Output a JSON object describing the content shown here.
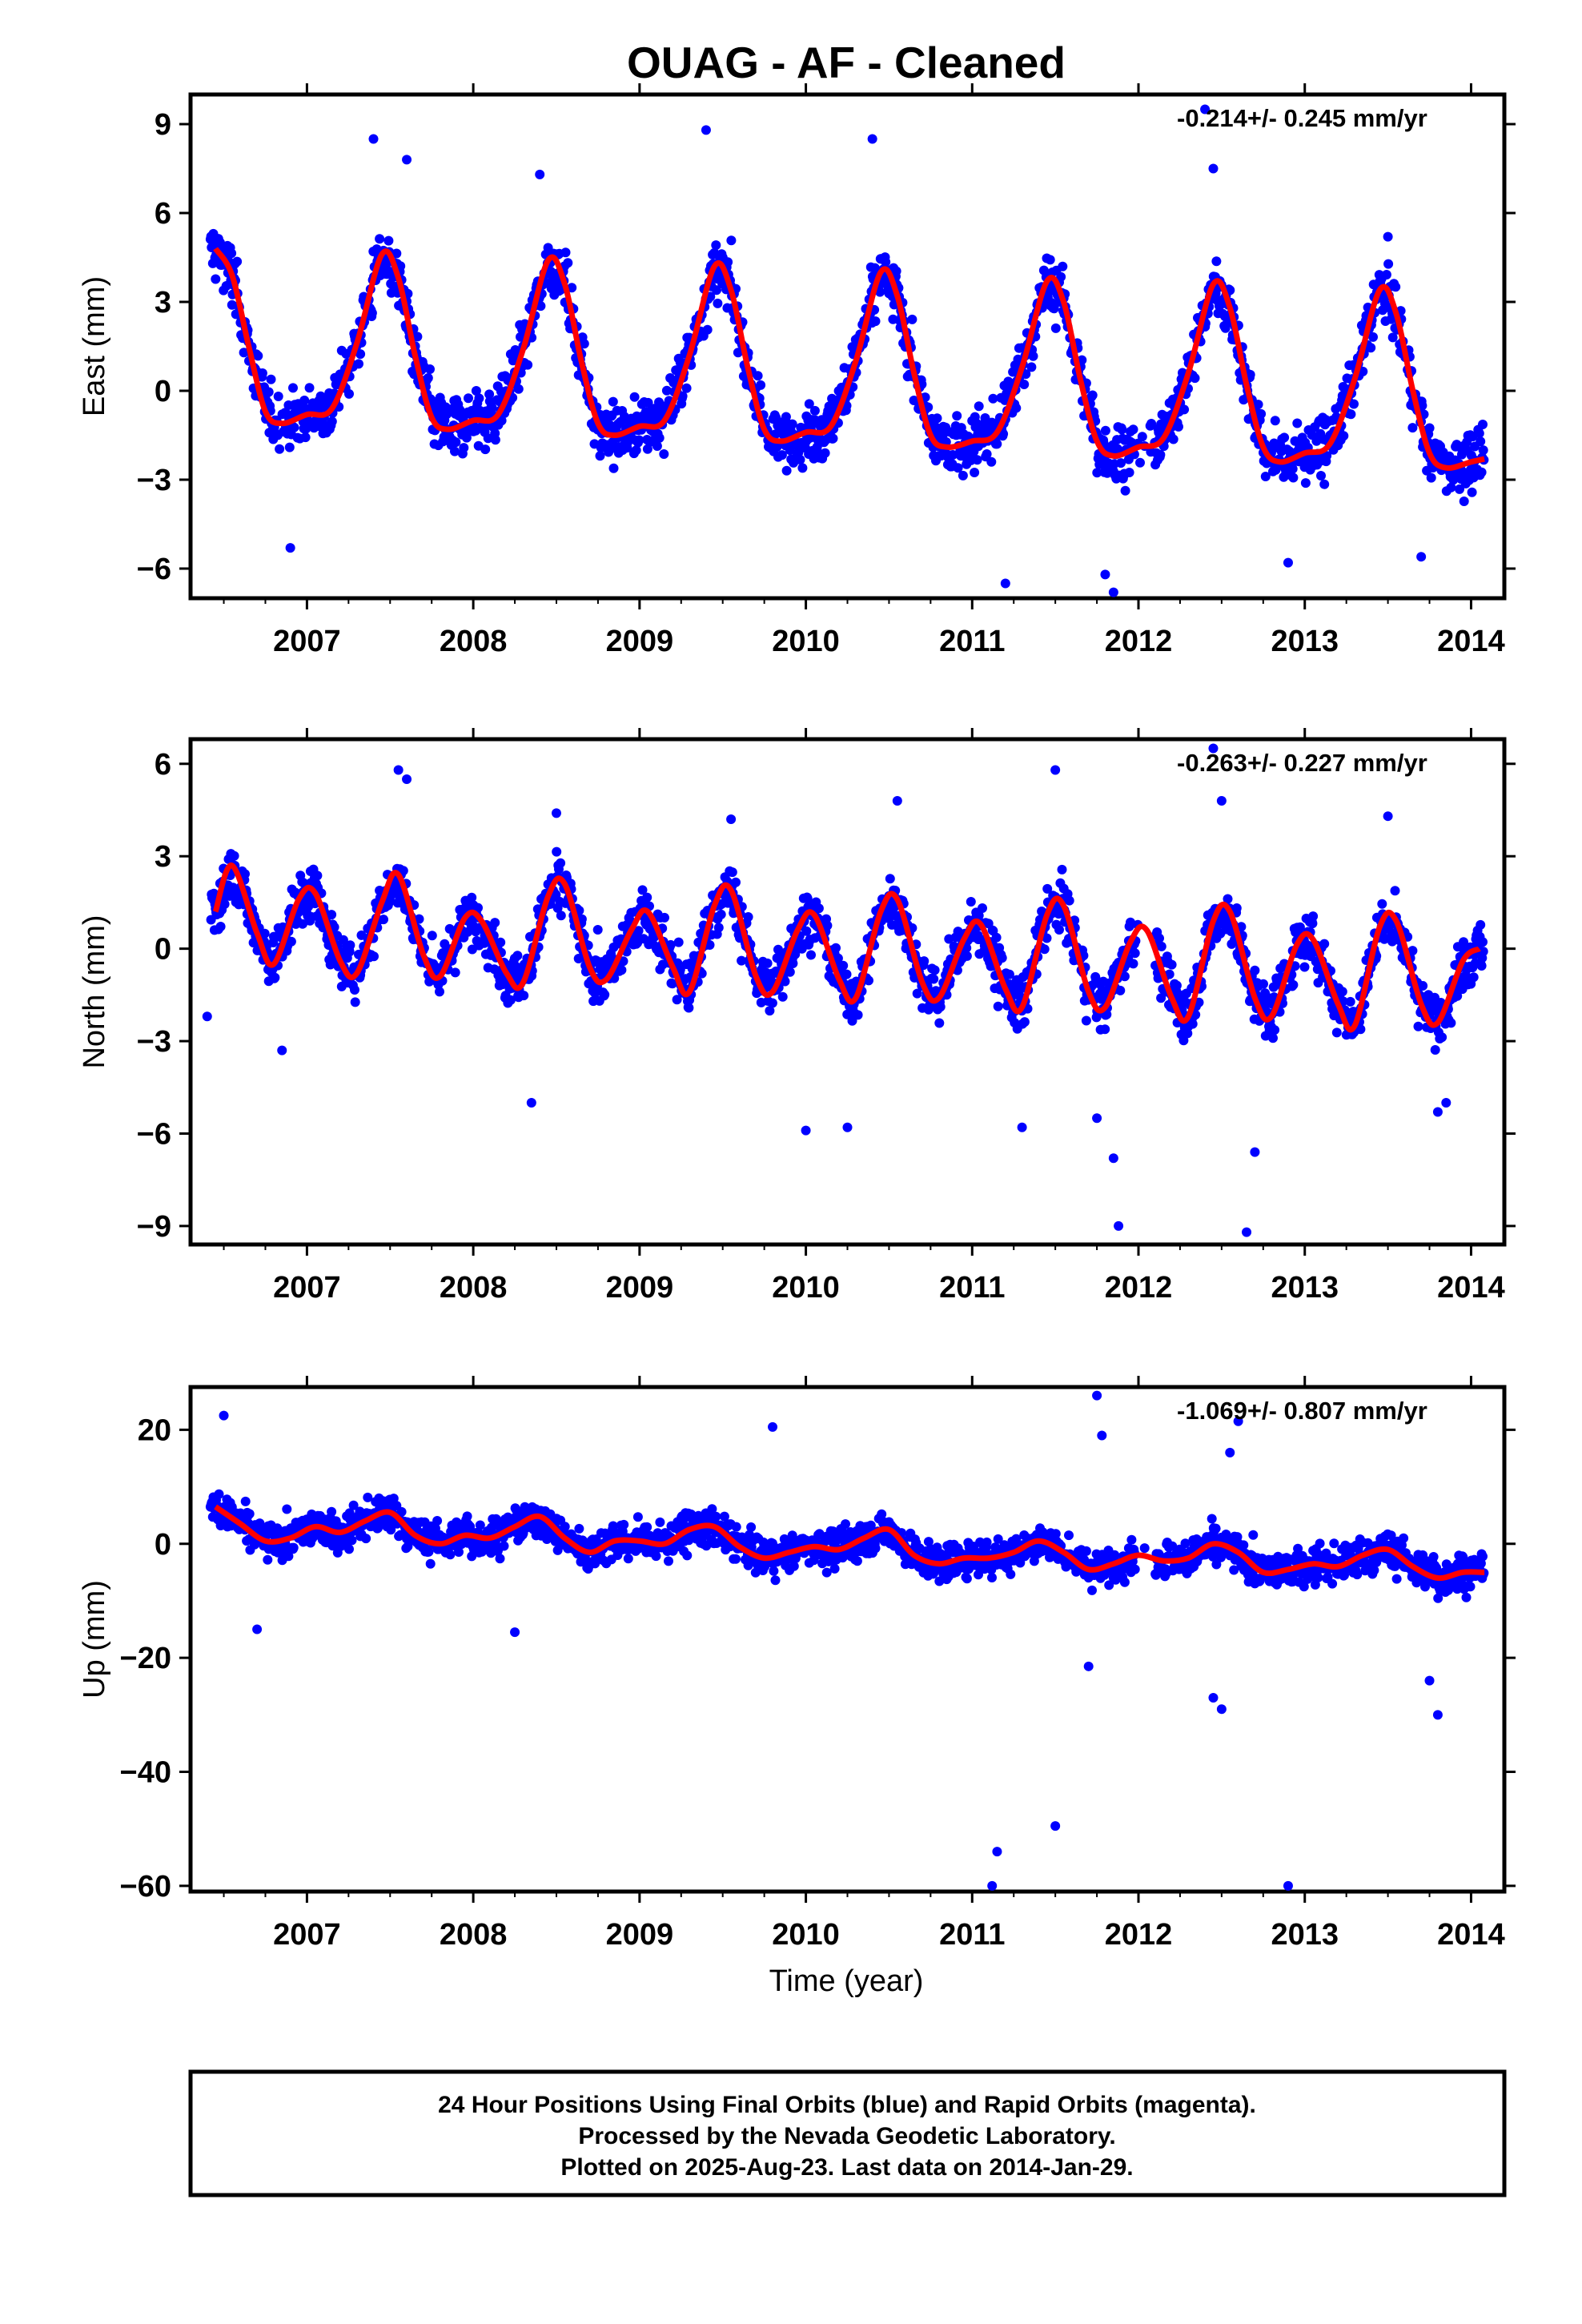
{
  "title": "OUAG  - AF - Cleaned",
  "x_axis_label": "Time (year)",
  "x_ticks": [
    "2007",
    "2008",
    "2009",
    "2010",
    "2011",
    "2012",
    "2013",
    "2014"
  ],
  "footer": {
    "line1": "24 Hour Positions Using Final Orbits (blue) and Rapid Orbits (magenta).",
    "line2": "Processed by the Nevada Geodetic Laboratory.",
    "line3": "Plotted on 2025-Aug-23. Last data on 2014-Jan-29."
  },
  "colors": {
    "points": "#0000ff",
    "fit": "#ff0000",
    "frame": "#000000"
  },
  "chart_data": [
    {
      "type": "scatter",
      "panel": "east",
      "ylabel": "East (mm)",
      "rate_text": "-0.214+/- 0.245 mm/yr",
      "xlim": [
        2006.3,
        2014.2
      ],
      "ylim": [
        -7,
        10
      ],
      "y_ticks": [
        "9",
        "6",
        "3",
        "0",
        "−3",
        "−6"
      ],
      "y_tick_values": [
        9,
        6,
        3,
        0,
        -3,
        -6
      ],
      "x_tick_values": [
        2007,
        2008,
        2009,
        2010,
        2011,
        2012,
        2013,
        2014
      ],
      "series": [
        {
          "kind": "fit",
          "x": [
            2006.45,
            2006.55,
            2006.65,
            2006.75,
            2006.85,
            2007.0,
            2007.15,
            2007.3,
            2007.45,
            2007.55,
            2007.65,
            2007.75,
            2007.85,
            2008.0,
            2008.15,
            2008.3,
            2008.45,
            2008.55,
            2008.65,
            2008.75,
            2008.85,
            2009.0,
            2009.15,
            2009.3,
            2009.45,
            2009.55,
            2009.65,
            2009.75,
            2009.85,
            2010.0,
            2010.15,
            2010.3,
            2010.45,
            2010.55,
            2010.65,
            2010.75,
            2010.85,
            2011.0,
            2011.15,
            2011.3,
            2011.45,
            2011.55,
            2011.65,
            2011.75,
            2011.85,
            2012.0,
            2012.15,
            2012.3,
            2012.45,
            2012.55,
            2012.65,
            2012.75,
            2012.85,
            2013.0,
            2013.15,
            2013.3,
            2013.45,
            2013.55,
            2013.65,
            2013.75,
            2013.85,
            2014.0,
            2014.08
          ],
          "y": [
            4.8,
            3.9,
            1.5,
            -0.7,
            -1.1,
            -0.8,
            -0.6,
            1.6,
            4.6,
            3.8,
            1.2,
            -0.9,
            -1.3,
            -1.0,
            -0.8,
            1.4,
            4.4,
            3.6,
            1.0,
            -1.1,
            -1.5,
            -1.2,
            -1.0,
            1.2,
            4.2,
            3.4,
            0.8,
            -1.3,
            -1.7,
            -1.4,
            -1.2,
            1.0,
            4.0,
            3.2,
            0.6,
            -1.5,
            -1.9,
            -1.7,
            -1.4,
            0.8,
            3.7,
            3.0,
            0.4,
            -1.7,
            -2.2,
            -1.9,
            -1.6,
            0.6,
            3.6,
            2.8,
            0.2,
            -1.9,
            -2.4,
            -2.1,
            -1.8,
            0.4,
            3.4,
            2.6,
            0.0,
            -2.1,
            -2.6,
            -2.4,
            -2.3
          ]
        },
        {
          "kind": "outliers",
          "x": [
            2006.9,
            2007.4,
            2007.6,
            2008.4,
            2009.4,
            2010.4,
            2011.2,
            2011.8,
            2011.85,
            2012.4,
            2012.45,
            2012.9,
            2013.5,
            2013.7
          ],
          "y": [
            -5.3,
            8.5,
            7.8,
            7.3,
            8.8,
            8.5,
            -6.5,
            -6.2,
            -6.8,
            9.5,
            7.5,
            -5.8,
            5.2,
            -5.6
          ]
        }
      ]
    },
    {
      "type": "scatter",
      "panel": "north",
      "ylabel": "North (mm)",
      "rate_text": "-0.263+/- 0.227 mm/yr",
      "xlim": [
        2006.3,
        2014.2
      ],
      "ylim": [
        -9.6,
        6.8
      ],
      "y_ticks": [
        "6",
        "3",
        "0",
        "−3",
        "−6",
        "−9"
      ],
      "y_tick_values": [
        6,
        3,
        0,
        -3,
        -6,
        -9
      ],
      "x_tick_values": [
        2007,
        2008,
        2009,
        2010,
        2011,
        2012,
        2013,
        2014
      ],
      "series": [
        {
          "kind": "fit",
          "x": [
            2006.45,
            2006.55,
            2006.7,
            2006.8,
            2006.95,
            2007.05,
            2007.2,
            2007.3,
            2007.45,
            2007.55,
            2007.7,
            2007.8,
            2007.95,
            2008.05,
            2008.2,
            2008.3,
            2008.45,
            2008.55,
            2008.7,
            2008.8,
            2008.95,
            2009.05,
            2009.2,
            2009.3,
            2009.45,
            2009.55,
            2009.7,
            2009.8,
            2009.95,
            2010.05,
            2010.2,
            2010.3,
            2010.45,
            2010.55,
            2010.7,
            2010.8,
            2010.95,
            2011.05,
            2011.2,
            2011.3,
            2011.45,
            2011.55,
            2011.7,
            2011.8,
            2011.95,
            2012.05,
            2012.2,
            2012.3,
            2012.45,
            2012.55,
            2012.7,
            2012.8,
            2012.95,
            2013.05,
            2013.2,
            2013.3,
            2013.45,
            2013.55,
            2013.7,
            2013.8,
            2013.95,
            2014.05
          ],
          "y": [
            1.2,
            2.7,
            0.5,
            -0.5,
            1.6,
            1.8,
            -0.4,
            -0.8,
            1.5,
            2.4,
            -0.2,
            -0.9,
            1.0,
            0.9,
            -0.8,
            -1.1,
            1.7,
            2.1,
            -0.6,
            -1.0,
            0.6,
            1.2,
            -0.6,
            -1.4,
            1.4,
            1.9,
            -0.9,
            -1.4,
            0.6,
            1.1,
            -1.0,
            -1.6,
            1.2,
            1.6,
            -1.1,
            -1.6,
            0.3,
            0.8,
            -1.3,
            -1.9,
            1.1,
            1.4,
            -1.4,
            -1.9,
            0.2,
            0.6,
            -1.6,
            -2.2,
            0.9,
            1.2,
            -1.6,
            -2.2,
            0.1,
            0.3,
            -1.8,
            -2.5,
            0.7,
            0.9,
            -1.8,
            -2.4,
            -0.4,
            0.0
          ]
        },
        {
          "kind": "outliers",
          "x": [
            2006.4,
            2006.85,
            2007.55,
            2007.6,
            2008.35,
            2008.5,
            2009.55,
            2010.0,
            2010.25,
            2010.55,
            2011.3,
            2011.5,
            2011.75,
            2011.85,
            2011.88,
            2012.45,
            2012.5,
            2012.65,
            2012.7,
            2013.5,
            2013.8,
            2013.85
          ],
          "y": [
            -2.2,
            -3.3,
            5.8,
            5.5,
            -5.0,
            4.4,
            4.2,
            -5.9,
            -5.8,
            4.8,
            -5.8,
            5.8,
            -5.5,
            -6.8,
            -9.0,
            6.5,
            4.8,
            -9.2,
            -6.6,
            4.3,
            -5.3,
            -5.0
          ]
        }
      ]
    },
    {
      "type": "scatter",
      "panel": "up",
      "ylabel": "Up (mm)",
      "rate_text": "-1.069+/- 0.807 mm/yr",
      "xlim": [
        2006.3,
        2014.2
      ],
      "ylim": [
        -61,
        27.5
      ],
      "y_ticks": [
        "20",
        "0",
        "−20",
        "−40",
        "−60"
      ],
      "y_tick_values": [
        20,
        0,
        -20,
        -40,
        -60
      ],
      "x_tick_values": [
        2007,
        2008,
        2009,
        2010,
        2011,
        2012,
        2013,
        2014
      ],
      "series": [
        {
          "kind": "fit",
          "x": [
            2006.45,
            2006.6,
            2006.75,
            2006.9,
            2007.05,
            2007.2,
            2007.35,
            2007.5,
            2007.65,
            2007.8,
            2007.95,
            2008.1,
            2008.25,
            2008.4,
            2008.55,
            2008.7,
            2008.85,
            2009.0,
            2009.15,
            2009.3,
            2009.45,
            2009.6,
            2009.75,
            2009.9,
            2010.05,
            2010.2,
            2010.35,
            2010.5,
            2010.65,
            2010.8,
            2010.95,
            2011.1,
            2011.25,
            2011.4,
            2011.55,
            2011.7,
            2011.85,
            2012.0,
            2012.15,
            2012.3,
            2012.45,
            2012.6,
            2012.75,
            2012.9,
            2013.05,
            2013.2,
            2013.35,
            2013.5,
            2013.65,
            2013.8,
            2013.95,
            2014.08
          ],
          "y": [
            6.5,
            3.5,
            0.5,
            1.0,
            3.0,
            2.0,
            4.0,
            5.5,
            1.5,
            0.0,
            1.5,
            1.0,
            3.0,
            4.8,
            1.0,
            -1.5,
            0.5,
            0.5,
            0.0,
            2.5,
            3.0,
            -0.5,
            -2.5,
            -1.5,
            -0.5,
            -1.0,
            1.0,
            2.5,
            -2.0,
            -3.5,
            -2.5,
            -2.5,
            -1.5,
            0.5,
            -1.5,
            -4.5,
            -3.5,
            -2.0,
            -3.0,
            -2.5,
            0.0,
            -1.5,
            -5.0,
            -4.5,
            -3.5,
            -4.0,
            -2.0,
            -1.0,
            -4.0,
            -6.0,
            -5.0,
            -5.0
          ]
        },
        {
          "kind": "outliers",
          "x": [
            2006.5,
            2006.7,
            2008.25,
            2009.8,
            2011.15,
            2011.12,
            2011.5,
            2011.7,
            2011.75,
            2011.78,
            2012.45,
            2012.5,
            2012.55,
            2012.6,
            2012.9,
            2013.75,
            2013.8
          ],
          "y": [
            22.5,
            -15.0,
            -15.5,
            20.5,
            -54.0,
            -60.0,
            -49.5,
            -21.5,
            26.0,
            19.0,
            -27.0,
            -29.0,
            16.0,
            21.5,
            -60.0,
            -24.0,
            -30.0
          ]
        }
      ]
    }
  ]
}
